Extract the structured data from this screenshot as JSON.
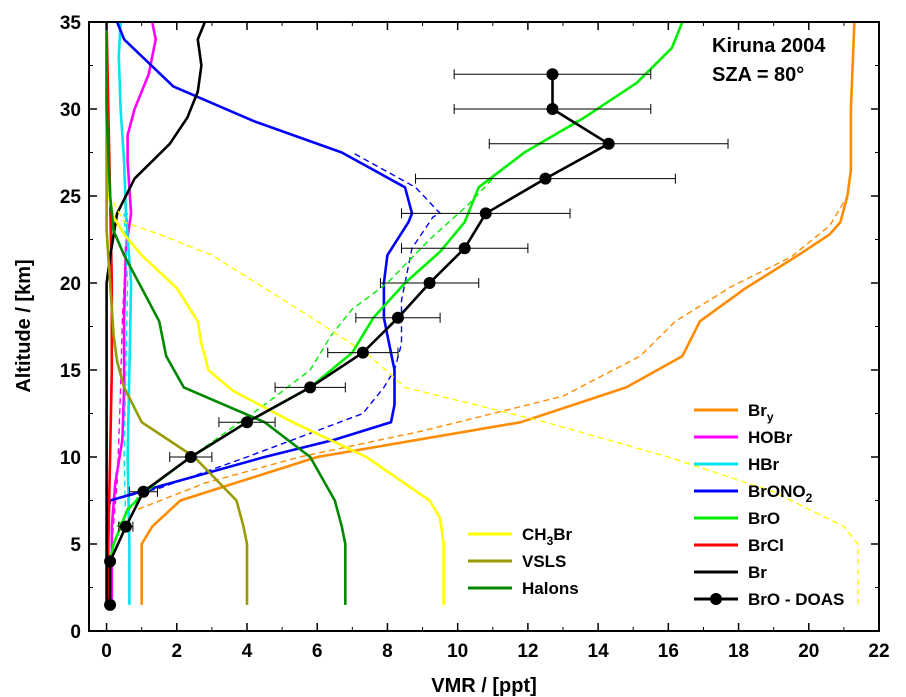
{
  "chart_data": {
    "type": "line",
    "xlabel": "VMR  /  [ppt]",
    "ylabel": "Altitude  /  [km]",
    "xlim": [
      -0.5,
      22
    ],
    "ylim": [
      0,
      35
    ],
    "xticks": [
      0,
      2,
      4,
      6,
      8,
      10,
      12,
      14,
      16,
      18,
      20,
      22
    ],
    "yticks": [
      0,
      5,
      10,
      15,
      20,
      25,
      30,
      35
    ],
    "annotations": [
      "Kiruna 2004",
      "SZA = 80°"
    ],
    "legend_right_placement": "bottom-right",
    "legend_left_placement": "bottom-center",
    "series": [
      {
        "name": "Br",
        "sub": "y",
        "color": "#ff8c00",
        "style": "solid",
        "legend": "right",
        "points": [
          [
            1.0,
            1.5
          ],
          [
            1.0,
            5.0
          ],
          [
            1.3,
            6.0
          ],
          [
            2.1,
            7.5
          ],
          [
            6.0,
            10.0
          ],
          [
            11.8,
            12.0
          ],
          [
            14.8,
            14.0
          ],
          [
            16.4,
            15.8
          ],
          [
            16.9,
            17.8
          ],
          [
            18.2,
            19.7
          ],
          [
            19.7,
            21.6
          ],
          [
            20.6,
            22.8
          ],
          [
            20.9,
            23.5
          ],
          [
            21.1,
            25.0
          ],
          [
            21.2,
            26.5
          ],
          [
            21.2,
            30.0
          ],
          [
            21.3,
            35.0
          ]
        ]
      },
      {
        "name": "Br",
        "sub": "y",
        "color": "#ff8c00",
        "style": "dashed",
        "legend": "none",
        "points": [
          [
            0.9,
            7.0
          ],
          [
            2.8,
            8.5
          ],
          [
            5.5,
            10.0
          ],
          [
            9.0,
            11.5
          ],
          [
            13.0,
            13.5
          ],
          [
            15.2,
            15.8
          ],
          [
            16.2,
            17.8
          ],
          [
            17.8,
            19.8
          ],
          [
            19.5,
            21.5
          ],
          [
            20.6,
            23.3
          ],
          [
            21.1,
            25.0
          ],
          [
            21.2,
            26.5
          ],
          [
            21.2,
            30.0
          ],
          [
            21.3,
            35.0
          ]
        ]
      },
      {
        "name": "HOBr",
        "color": "#ff00ff",
        "style": "solid",
        "legend": "right",
        "points": [
          [
            0.15,
            1.5
          ],
          [
            0.15,
            6.0
          ],
          [
            0.25,
            8.5
          ],
          [
            0.45,
            11.0
          ],
          [
            0.5,
            14.0
          ],
          [
            0.5,
            18.0
          ],
          [
            0.55,
            22.0
          ],
          [
            0.7,
            24.0
          ],
          [
            0.6,
            27.0
          ],
          [
            0.6,
            28.5
          ],
          [
            0.8,
            30.0
          ],
          [
            1.2,
            32.0
          ],
          [
            1.4,
            34.0
          ],
          [
            1.3,
            35.0
          ]
        ]
      },
      {
        "name": "HOBr",
        "color": "#ff00ff",
        "style": "dashed",
        "legend": "none",
        "points": [
          [
            0.15,
            5.0
          ],
          [
            0.3,
            8.5
          ],
          [
            0.35,
            11.0
          ],
          [
            0.4,
            14.0
          ],
          [
            0.45,
            18.0
          ],
          [
            0.55,
            22.0
          ],
          [
            0.6,
            24.0
          ]
        ]
      },
      {
        "name": "HBr",
        "color": "#00e5ee",
        "style": "solid",
        "legend": "right",
        "points": [
          [
            0.65,
            1.5
          ],
          [
            0.65,
            5.0
          ],
          [
            0.6,
            10.0
          ],
          [
            0.65,
            15.0
          ],
          [
            0.7,
            20.0
          ],
          [
            0.55,
            24.0
          ],
          [
            0.5,
            27.0
          ],
          [
            0.4,
            30.0
          ],
          [
            0.35,
            33.0
          ],
          [
            0.4,
            35.0
          ]
        ]
      },
      {
        "name": "HBr",
        "color": "#00e5ee",
        "style": "dashed",
        "legend": "none",
        "points": [
          [
            0.55,
            6.0
          ],
          [
            0.5,
            10.0
          ],
          [
            0.55,
            15.0
          ],
          [
            0.6,
            20.0
          ],
          [
            0.5,
            24.0
          ]
        ]
      },
      {
        "name": "BrONO",
        "sub": "2",
        "color": "#0000ff",
        "style": "solid",
        "legend": "right",
        "points": [
          [
            0.0,
            5.0
          ],
          [
            0.05,
            7.0
          ],
          [
            0.1,
            7.5
          ],
          [
            1.3,
            8.2
          ],
          [
            4.5,
            10.0
          ],
          [
            6.5,
            11.0
          ],
          [
            8.1,
            12.0
          ],
          [
            8.2,
            13.0
          ],
          [
            8.2,
            15.0
          ],
          [
            8.0,
            17.0
          ],
          [
            7.9,
            18.0
          ],
          [
            7.9,
            20.0
          ],
          [
            8.0,
            21.6
          ],
          [
            8.6,
            23.5
          ],
          [
            8.7,
            24.0
          ],
          [
            8.5,
            25.5
          ],
          [
            6.7,
            27.5
          ],
          [
            4.2,
            29.3
          ],
          [
            1.9,
            31.3
          ],
          [
            0.5,
            34.0
          ],
          [
            0.3,
            35.0
          ]
        ]
      },
      {
        "name": "BrONO",
        "sub": "2",
        "color": "#0000ff",
        "style": "dashed",
        "legend": "none",
        "points": [
          [
            0.1,
            7.5
          ],
          [
            1.5,
            8.2
          ],
          [
            4.0,
            10.0
          ],
          [
            7.3,
            12.5
          ],
          [
            7.9,
            14.0
          ],
          [
            8.2,
            15.0
          ],
          [
            8.4,
            16.5
          ],
          [
            8.4,
            19.0
          ],
          [
            8.7,
            22.0
          ],
          [
            9.3,
            23.8
          ],
          [
            9.5,
            24.0
          ],
          [
            8.8,
            25.5
          ],
          [
            7.0,
            27.5
          ]
        ]
      },
      {
        "name": "BrO",
        "color": "#00ee00",
        "style": "solid",
        "legend": "right",
        "points": [
          [
            0.1,
            1.5
          ],
          [
            0.1,
            4.0
          ],
          [
            0.2,
            5.0
          ],
          [
            0.6,
            7.0
          ],
          [
            1.4,
            8.5
          ],
          [
            2.4,
            10.0
          ],
          [
            4.0,
            12.0
          ],
          [
            5.8,
            14.0
          ],
          [
            7.0,
            16.0
          ],
          [
            7.6,
            18.0
          ],
          [
            8.5,
            20.0
          ],
          [
            9.5,
            21.8
          ],
          [
            10.2,
            23.5
          ],
          [
            10.6,
            25.5
          ],
          [
            11.9,
            27.5
          ],
          [
            13.6,
            29.5
          ],
          [
            15.1,
            31.5
          ],
          [
            16.1,
            33.5
          ],
          [
            16.4,
            35.0
          ]
        ]
      },
      {
        "name": "BrO",
        "color": "#00ee00",
        "style": "dashed",
        "legend": "none",
        "points": [
          [
            0.3,
            6.0
          ],
          [
            1.0,
            8.0
          ],
          [
            2.4,
            10.0
          ],
          [
            4.5,
            13.0
          ],
          [
            5.8,
            15.0
          ],
          [
            6.4,
            17.0
          ],
          [
            7.0,
            18.5
          ],
          [
            8.0,
            20.0
          ],
          [
            9.2,
            22.5
          ],
          [
            10.3,
            24.5
          ],
          [
            11.0,
            26.0
          ]
        ]
      },
      {
        "name": "BrCl",
        "color": "#ff0000",
        "style": "solid",
        "legend": "right",
        "points": [
          [
            0.05,
            1.5
          ],
          [
            0.05,
            5.0
          ],
          [
            0.1,
            10.0
          ],
          [
            0.15,
            15.0
          ],
          [
            0.15,
            20.0
          ],
          [
            0.1,
            25.0
          ],
          [
            0.05,
            30.0
          ],
          [
            0.0,
            35.0
          ]
        ]
      },
      {
        "name": "Br",
        "color": "#000000",
        "style": "solid",
        "legend": "right",
        "points": [
          [
            0.0,
            1.5
          ],
          [
            0.0,
            10.0
          ],
          [
            0.0,
            20.0
          ],
          [
            0.1,
            21.5
          ],
          [
            0.3,
            24.0
          ],
          [
            0.8,
            26.0
          ],
          [
            1.8,
            28.0
          ],
          [
            2.3,
            29.5
          ],
          [
            2.6,
            31.0
          ],
          [
            2.7,
            32.5
          ],
          [
            2.6,
            34.0
          ],
          [
            2.8,
            35.0
          ]
        ]
      },
      {
        "name": "CH3Br",
        "label_main": "CH",
        "label_sub": "3",
        "label_end": "Br",
        "color": "#ffff00",
        "style": "solid",
        "legend": "left",
        "points": [
          [
            9.6,
            1.5
          ],
          [
            9.6,
            5.0
          ],
          [
            9.5,
            6.5
          ],
          [
            9.2,
            7.5
          ],
          [
            7.4,
            10.0
          ],
          [
            5.3,
            12.0
          ],
          [
            3.6,
            13.8
          ],
          [
            2.9,
            15.0
          ],
          [
            2.8,
            15.8
          ],
          [
            2.7,
            16.5
          ],
          [
            2.6,
            17.8
          ],
          [
            2.0,
            19.7
          ],
          [
            1.0,
            21.6
          ],
          [
            0.5,
            22.8
          ],
          [
            0.2,
            23.8
          ],
          [
            0.05,
            25.0
          ],
          [
            0.0,
            30.0
          ],
          [
            0.0,
            35.0
          ]
        ]
      },
      {
        "name": "CH3Br",
        "color": "#ffff00",
        "style": "dashed",
        "legend": "none",
        "points": [
          [
            21.4,
            1.5
          ],
          [
            21.4,
            5.0
          ],
          [
            21.0,
            6.0
          ],
          [
            19.0,
            8.0
          ],
          [
            16.0,
            10.0
          ],
          [
            12.5,
            12.0
          ],
          [
            9.5,
            13.5
          ],
          [
            8.5,
            14.0
          ],
          [
            7.5,
            15.8
          ],
          [
            6.0,
            17.8
          ],
          [
            4.5,
            19.7
          ],
          [
            3.0,
            21.6
          ],
          [
            1.5,
            22.8
          ],
          [
            0.5,
            23.5
          ],
          [
            0.1,
            25.0
          ],
          [
            0.0,
            30.0
          ]
        ]
      },
      {
        "name": "VSLS",
        "color": "#999900",
        "style": "solid",
        "legend": "left",
        "points": [
          [
            4.0,
            1.5
          ],
          [
            4.0,
            5.0
          ],
          [
            3.9,
            6.0
          ],
          [
            3.7,
            7.5
          ],
          [
            2.5,
            10.0
          ],
          [
            1.0,
            12.0
          ],
          [
            0.5,
            14.0
          ],
          [
            0.3,
            15.5
          ],
          [
            0.2,
            17.0
          ],
          [
            0.1,
            20.0
          ],
          [
            0.0,
            23.0
          ],
          [
            0.0,
            35.0
          ]
        ]
      },
      {
        "name": "Halons",
        "color": "#008800",
        "style": "solid",
        "legend": "left",
        "points": [
          [
            6.8,
            1.5
          ],
          [
            6.8,
            5.0
          ],
          [
            6.7,
            6.0
          ],
          [
            6.5,
            7.5
          ],
          [
            5.8,
            10.0
          ],
          [
            4.5,
            12.0
          ],
          [
            2.2,
            14.0
          ],
          [
            1.7,
            15.8
          ],
          [
            1.5,
            17.8
          ],
          [
            1.0,
            19.7
          ],
          [
            0.5,
            21.6
          ],
          [
            0.2,
            23.0
          ],
          [
            0.1,
            25.0
          ],
          [
            0.0,
            30.0
          ],
          [
            0.0,
            35.0
          ]
        ]
      }
    ],
    "doas": {
      "name": "BrO - DOAS",
      "color": "#000000",
      "points": [
        {
          "x": 0.1,
          "y": 1.5,
          "xerr": 0
        },
        {
          "x": 0.1,
          "y": 4.0,
          "xerr": 0
        },
        {
          "x": 0.55,
          "y": 6.0,
          "xerr": 0.2
        },
        {
          "x": 1.05,
          "y": 8.0,
          "xerr": 0.4
        },
        {
          "x": 2.4,
          "y": 10.0,
          "xerr": 0.6
        },
        {
          "x": 4.0,
          "y": 12.0,
          "xerr": 0.8
        },
        {
          "x": 5.8,
          "y": 14.0,
          "xerr": 1.0
        },
        {
          "x": 7.3,
          "y": 16.0,
          "xerr": 1.0
        },
        {
          "x": 8.3,
          "y": 18.0,
          "xerr": 1.2
        },
        {
          "x": 9.2,
          "y": 20.0,
          "xerr": 1.4
        },
        {
          "x": 10.2,
          "y": 22.0,
          "xerr": 1.8
        },
        {
          "x": 10.8,
          "y": 24.0,
          "xerr": 2.4
        },
        {
          "x": 12.5,
          "y": 26.0,
          "xerr": 3.7
        },
        {
          "x": 14.3,
          "y": 28.0,
          "xerr": 3.4
        },
        {
          "x": 12.7,
          "y": 30.0,
          "xerr": 2.8
        },
        {
          "x": 12.7,
          "y": 32.0,
          "xerr": 2.8
        }
      ]
    },
    "legend_right": [
      {
        "main": "Br",
        "sub": "y",
        "end": "",
        "color": "#ff8c00"
      },
      {
        "main": "HOBr",
        "sub": "",
        "end": "",
        "color": "#ff00ff"
      },
      {
        "main": "HBr",
        "sub": "",
        "end": "",
        "color": "#00e5ee"
      },
      {
        "main": "BrONO",
        "sub": "2",
        "end": "",
        "color": "#0000ff"
      },
      {
        "main": "BrO",
        "sub": "",
        "end": "",
        "color": "#00ee00"
      },
      {
        "main": "BrCl",
        "sub": "",
        "end": "",
        "color": "#ff0000"
      },
      {
        "main": "Br",
        "sub": "",
        "end": "",
        "color": "#000000"
      },
      {
        "main": "BrO - DOAS",
        "sub": "",
        "end": "",
        "color": "#000000",
        "marker": true
      }
    ],
    "legend_left": [
      {
        "main": "CH",
        "sub": "3",
        "end": "Br",
        "color": "#ffff00"
      },
      {
        "main": "VSLS",
        "sub": "",
        "end": "",
        "color": "#999900"
      },
      {
        "main": "Halons",
        "sub": "",
        "end": "",
        "color": "#008800"
      }
    ]
  }
}
